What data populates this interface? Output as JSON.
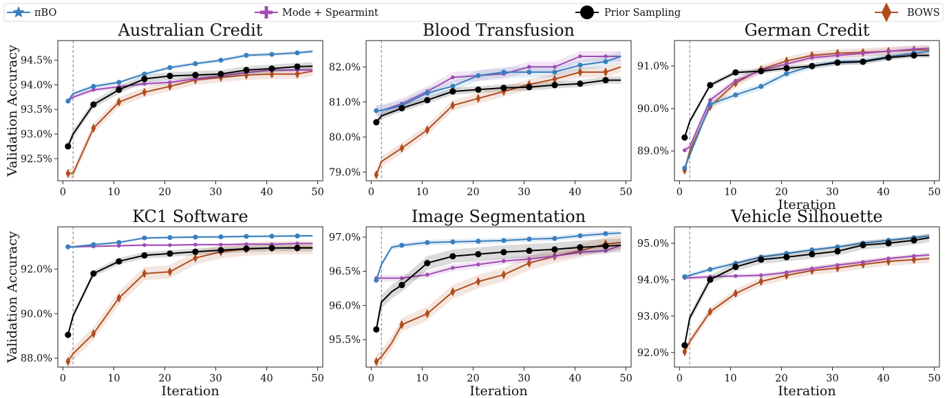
{
  "legend": {
    "position": "top",
    "entries": [
      {
        "id": "pibo",
        "label": "πBO",
        "color": "#3a7fbe",
        "marker": "star"
      },
      {
        "id": "mode",
        "label": "Mode + Spearmint",
        "color": "#a04bb3",
        "marker": "plus"
      },
      {
        "id": "prior",
        "label": "Prior Sampling",
        "color": "#000000",
        "marker": "circle"
      },
      {
        "id": "bows",
        "label": "BOWS",
        "color": "#b04d1e",
        "marker": "diamond"
      }
    ]
  },
  "chart_data": [
    {
      "type": "line",
      "title": "Australian Credit",
      "xlabel": "",
      "ylabel": "Validation Accuracy",
      "xlim": [
        -1,
        51
      ],
      "ylim": [
        92.05,
        94.9
      ],
      "xticks": [
        0,
        10,
        20,
        30,
        40,
        50
      ],
      "yticks": [
        92.5,
        93.0,
        93.5,
        94.0,
        94.5
      ],
      "ytick_labels": [
        "92.5%",
        "93.0%",
        "93.5%",
        "94.0%",
        "94.5%"
      ],
      "vline_x": 2,
      "x": [
        1,
        2,
        6,
        11,
        16,
        21,
        26,
        31,
        36,
        41,
        46,
        49
      ],
      "series": [
        {
          "id": "pibo",
          "name": "πBO",
          "values": [
            93.67,
            93.82,
            93.97,
            94.05,
            94.22,
            94.35,
            94.43,
            94.5,
            94.6,
            94.62,
            94.65,
            94.68
          ],
          "band": 0.04
        },
        {
          "id": "mode",
          "name": "Mode + Spearmint",
          "values": [
            93.67,
            93.75,
            93.9,
            93.96,
            94.02,
            94.05,
            94.12,
            94.18,
            94.25,
            94.3,
            94.3,
            94.3
          ],
          "band": 0.05
        },
        {
          "id": "prior",
          "name": "Prior Sampling",
          "values": [
            92.75,
            93.0,
            93.6,
            93.9,
            94.12,
            94.18,
            94.2,
            94.22,
            94.3,
            94.33,
            94.37,
            94.38
          ],
          "band": 0.08
        },
        {
          "id": "bows",
          "name": "BOWS",
          "values": [
            92.2,
            92.2,
            93.12,
            93.65,
            93.85,
            93.97,
            94.1,
            94.15,
            94.2,
            94.22,
            94.22,
            94.28
          ],
          "band": 0.1
        }
      ]
    },
    {
      "type": "line",
      "title": "Blood Transfusion",
      "xlabel": "",
      "ylabel": "",
      "xlim": [
        -1,
        51
      ],
      "ylim": [
        78.75,
        82.75
      ],
      "xticks": [
        0,
        10,
        20,
        30,
        40,
        50
      ],
      "yticks": [
        79.0,
        80.0,
        81.0,
        82.0
      ],
      "ytick_labels": [
        "79.0%",
        "80.0%",
        "81.0%",
        "82.0%"
      ],
      "vline_x": 2,
      "x": [
        1,
        2,
        6,
        11,
        16,
        21,
        26,
        31,
        36,
        41,
        46,
        49
      ],
      "series": [
        {
          "id": "pibo",
          "name": "πBO",
          "values": [
            80.75,
            80.75,
            80.9,
            81.25,
            81.45,
            81.75,
            81.85,
            81.85,
            81.85,
            82.05,
            82.15,
            82.3
          ],
          "band": 0.15
        },
        {
          "id": "mode",
          "name": "Mode + Spearmint",
          "values": [
            80.75,
            80.75,
            80.95,
            81.3,
            81.7,
            81.75,
            81.8,
            82.0,
            82.0,
            82.3,
            82.3,
            82.3
          ],
          "band": 0.15
        },
        {
          "id": "prior",
          "name": "Prior Sampling",
          "values": [
            80.42,
            80.6,
            80.82,
            81.05,
            81.3,
            81.35,
            81.4,
            81.42,
            81.48,
            81.52,
            81.62,
            81.62
          ],
          "band": 0.1
        },
        {
          "id": "bows",
          "name": "BOWS",
          "values": [
            78.92,
            79.3,
            79.68,
            80.2,
            80.9,
            81.1,
            81.3,
            81.5,
            81.65,
            81.85,
            81.85,
            82.0
          ],
          "band": 0.15
        }
      ]
    },
    {
      "type": "line",
      "title": "German Credit",
      "xlabel": "Iteration",
      "ylabel": "",
      "xlim": [
        -1,
        51
      ],
      "ylim": [
        88.3,
        91.6
      ],
      "xticks": [
        0,
        10,
        20,
        30,
        40,
        50
      ],
      "yticks": [
        89.0,
        90.0,
        91.0
      ],
      "ytick_labels": [
        "89.0%",
        "90.0%",
        "91.0%"
      ],
      "vline_x": 2,
      "x": [
        1,
        2,
        6,
        11,
        16,
        21,
        26,
        31,
        36,
        41,
        46,
        49
      ],
      "series": [
        {
          "id": "pibo",
          "name": "πBO",
          "values": [
            88.6,
            88.9,
            90.1,
            90.32,
            90.52,
            90.82,
            91.0,
            91.1,
            91.12,
            91.22,
            91.3,
            91.35
          ],
          "band": 0.08
        },
        {
          "id": "mode",
          "name": "Mode + Spearmint",
          "values": [
            89.02,
            89.1,
            90.2,
            90.65,
            90.9,
            91.05,
            91.2,
            91.25,
            91.3,
            91.35,
            91.4,
            91.42
          ],
          "band": 0.08
        },
        {
          "id": "prior",
          "name": "Prior Sampling",
          "values": [
            89.32,
            89.7,
            90.55,
            90.85,
            90.88,
            90.95,
            91.0,
            91.08,
            91.1,
            91.2,
            91.25,
            91.25
          ],
          "band": 0.06
        },
        {
          "id": "bows",
          "name": "BOWS",
          "values": [
            88.55,
            89.0,
            90.05,
            90.6,
            90.92,
            91.12,
            91.25,
            91.3,
            91.32,
            91.35,
            91.38,
            91.38
          ],
          "band": 0.1
        }
      ]
    },
    {
      "type": "line",
      "title": "KC1 Software",
      "xlabel": "Iteration",
      "ylabel": "Validation Accuracy",
      "xlim": [
        -1,
        51
      ],
      "ylim": [
        87.6,
        93.9
      ],
      "xticks": [
        0,
        10,
        20,
        30,
        40,
        50
      ],
      "yticks": [
        88.0,
        90.0,
        92.0
      ],
      "ytick_labels": [
        "88.0%",
        "90.0%",
        "92.0%"
      ],
      "vline_x": 2,
      "x": [
        1,
        2,
        6,
        11,
        16,
        21,
        26,
        31,
        36,
        41,
        46,
        49
      ],
      "series": [
        {
          "id": "pibo",
          "name": "πBO",
          "values": [
            93.0,
            93.0,
            93.1,
            93.2,
            93.4,
            93.42,
            93.44,
            93.45,
            93.47,
            93.48,
            93.49,
            93.5
          ],
          "band": 0.06
        },
        {
          "id": "mode",
          "name": "Mode + Spearmint",
          "values": [
            93.0,
            93.0,
            93.02,
            93.05,
            93.08,
            93.08,
            93.1,
            93.1,
            93.12,
            93.12,
            93.15,
            93.15
          ],
          "band": 0.05
        },
        {
          "id": "prior",
          "name": "Prior Sampling",
          "values": [
            89.05,
            89.9,
            91.8,
            92.35,
            92.62,
            92.7,
            92.78,
            92.85,
            92.92,
            92.95,
            92.95,
            92.95
          ],
          "band": 0.15
        },
        {
          "id": "bows",
          "name": "BOWS",
          "values": [
            87.85,
            88.2,
            89.1,
            90.7,
            91.8,
            91.88,
            92.5,
            92.78,
            92.9,
            92.95,
            92.97,
            92.97
          ],
          "band": 0.3
        }
      ]
    },
    {
      "type": "line",
      "title": "Image Segmentation",
      "xlabel": "Iteration",
      "ylabel": "",
      "xlim": [
        -1,
        51
      ],
      "ylim": [
        95.1,
        97.15
      ],
      "xticks": [
        0,
        10,
        20,
        30,
        40,
        50
      ],
      "yticks": [
        95.5,
        96.0,
        96.5,
        97.0
      ],
      "ytick_labels": [
        "95.5%",
        "96.0%",
        "96.5%",
        "97.0%"
      ],
      "vline_x": 2,
      "x": [
        1,
        2,
        4,
        6,
        11,
        16,
        21,
        26,
        31,
        36,
        41,
        46,
        49
      ],
      "series": [
        {
          "id": "pibo",
          "name": "πBO",
          "values": [
            96.37,
            96.6,
            96.85,
            96.88,
            96.92,
            96.93,
            96.94,
            96.95,
            96.97,
            96.98,
            97.02,
            97.05,
            97.06
          ],
          "band": 0.04
        },
        {
          "id": "mode",
          "name": "Mode + Spearmint",
          "values": [
            96.4,
            96.4,
            96.4,
            96.4,
            96.45,
            96.55,
            96.6,
            96.65,
            96.68,
            96.72,
            96.78,
            96.8,
            96.88
          ],
          "band": 0.05
        },
        {
          "id": "prior",
          "name": "Prior Sampling",
          "values": [
            95.65,
            96.05,
            96.2,
            96.3,
            96.62,
            96.72,
            96.75,
            96.78,
            96.8,
            96.82,
            96.85,
            96.87,
            96.88
          ],
          "band": 0.1
        },
        {
          "id": "bows",
          "name": "BOWS",
          "values": [
            95.18,
            95.25,
            95.45,
            95.72,
            95.88,
            96.2,
            96.35,
            96.45,
            96.62,
            96.72,
            96.8,
            96.9,
            96.92
          ],
          "band": 0.1
        }
      ]
    },
    {
      "type": "line",
      "title": "Vehicle Silhouette",
      "xlabel": "Iteration",
      "ylabel": "",
      "xlim": [
        -1,
        51
      ],
      "ylim": [
        91.6,
        95.45
      ],
      "xticks": [
        0,
        10,
        20,
        30,
        40,
        50
      ],
      "yticks": [
        92.0,
        93.0,
        94.0,
        95.0
      ],
      "ytick_labels": [
        "92.0%",
        "93.0%",
        "94.0%",
        "95.0%"
      ],
      "vline_x": 2,
      "x": [
        1,
        2,
        6,
        11,
        16,
        21,
        26,
        31,
        36,
        41,
        46,
        49
      ],
      "series": [
        {
          "id": "pibo",
          "name": "πBO",
          "values": [
            94.08,
            94.12,
            94.28,
            94.45,
            94.62,
            94.72,
            94.82,
            94.9,
            95.0,
            95.08,
            95.15,
            95.2
          ],
          "band": 0.06
        },
        {
          "id": "mode",
          "name": "Mode + Spearmint",
          "values": [
            94.05,
            94.05,
            94.08,
            94.1,
            94.12,
            94.2,
            94.3,
            94.4,
            94.48,
            94.58,
            94.65,
            94.68
          ],
          "band": 0.06
        },
        {
          "id": "prior",
          "name": "Prior Sampling",
          "values": [
            92.2,
            92.95,
            94.0,
            94.35,
            94.55,
            94.62,
            94.7,
            94.78,
            94.95,
            95.0,
            95.08,
            95.15
          ],
          "band": 0.12
        },
        {
          "id": "bows",
          "name": "BOWS",
          "values": [
            92.02,
            92.3,
            93.12,
            93.62,
            93.95,
            94.12,
            94.25,
            94.32,
            94.42,
            94.5,
            94.55,
            94.58
          ],
          "band": 0.12
        }
      ]
    }
  ]
}
